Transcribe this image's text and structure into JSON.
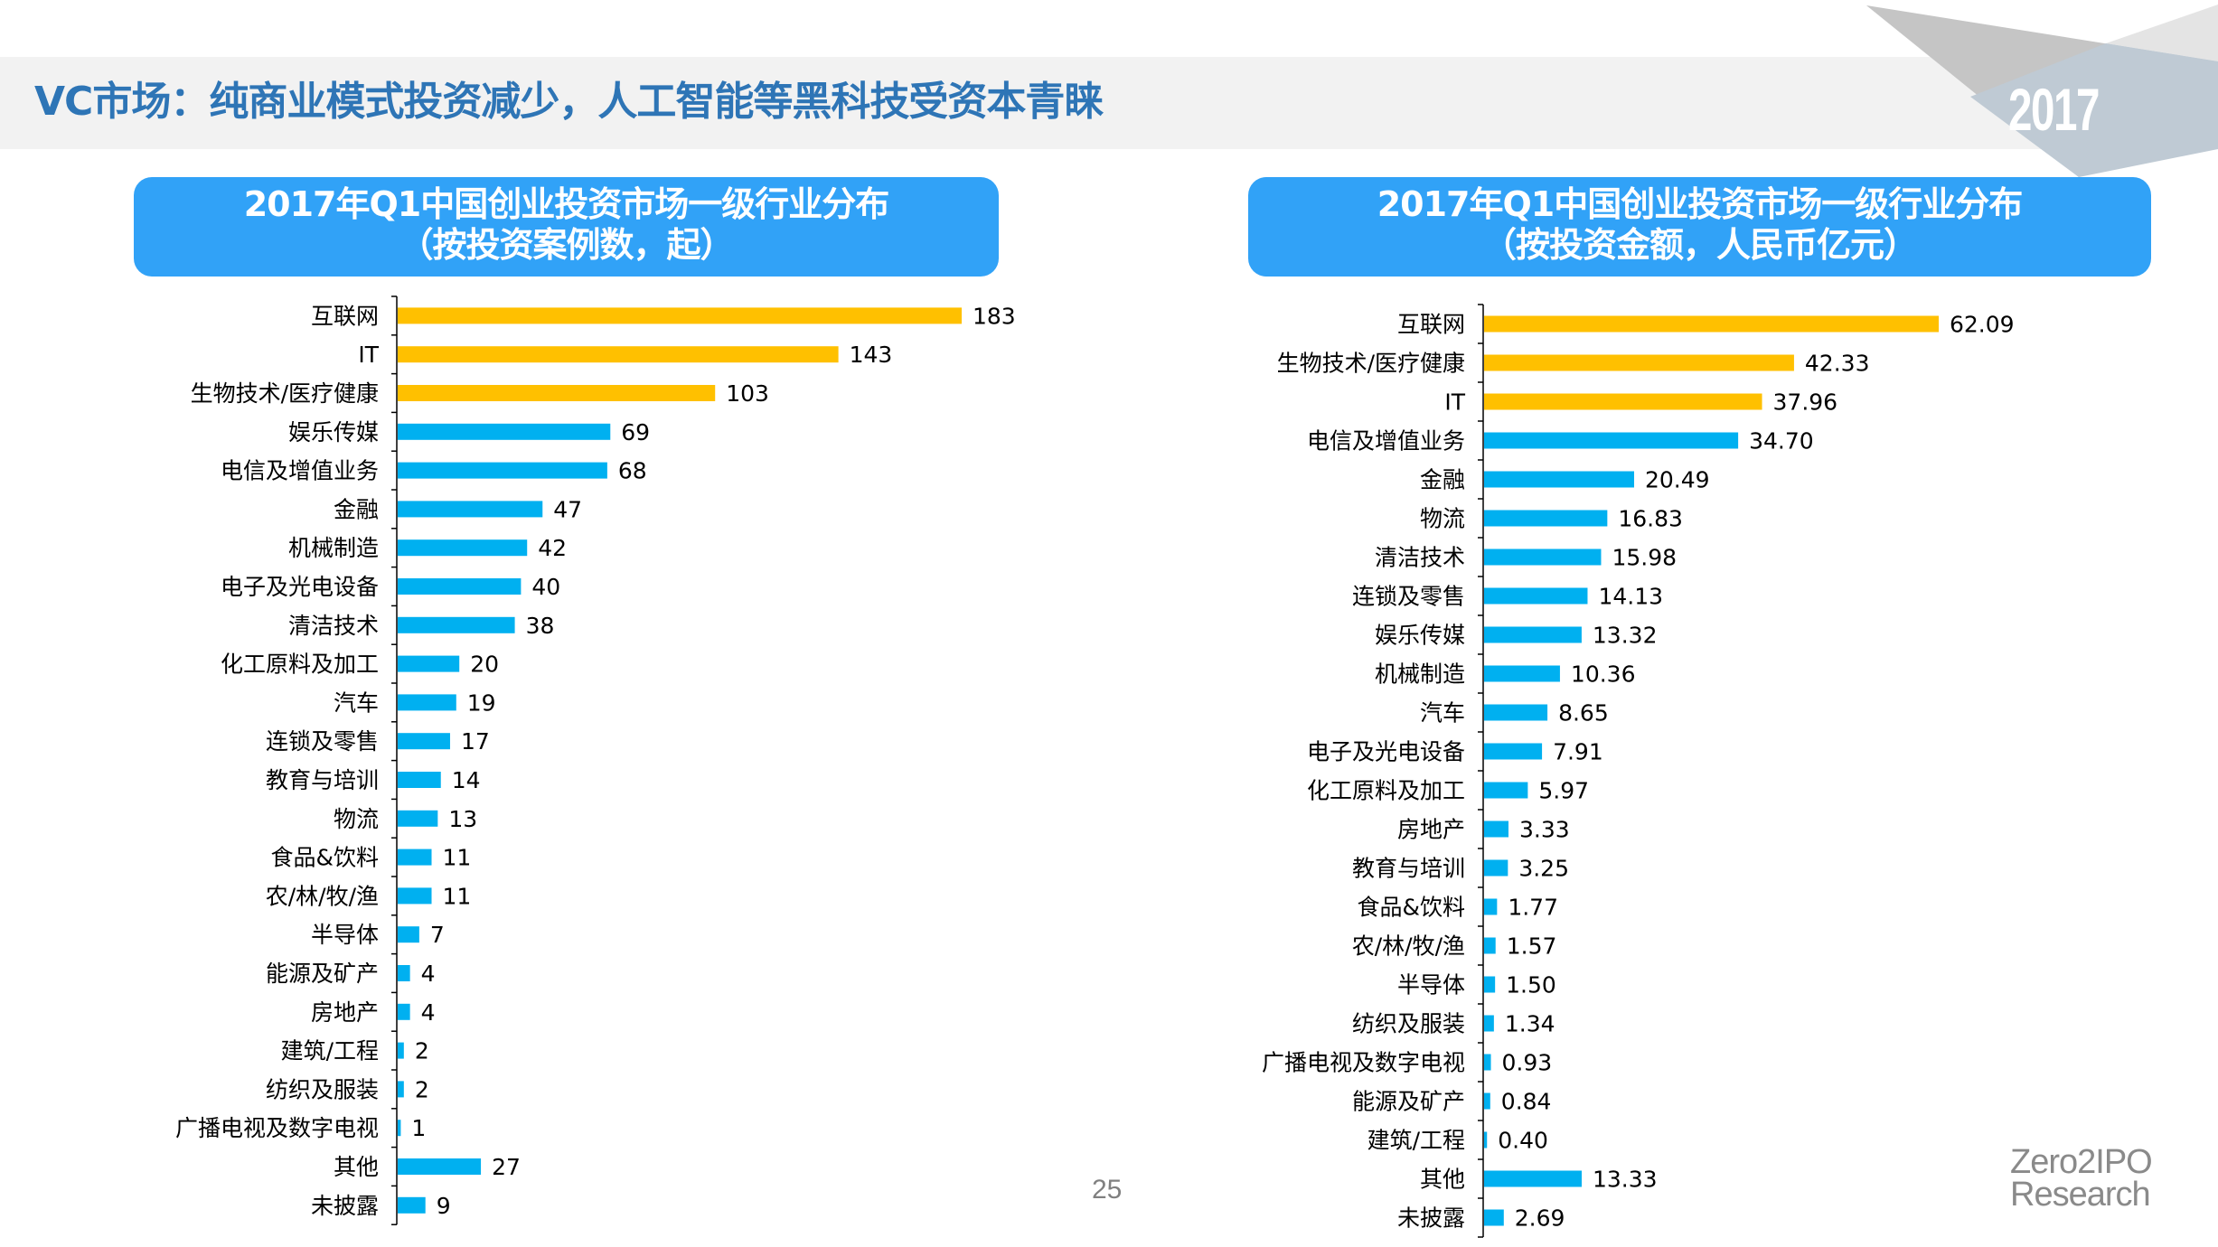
{
  "header": {
    "title": "VC市场：纯商业模式投资减少，人工智能等黑科技受资本青睐",
    "year_badge": "2017"
  },
  "colors": {
    "title": "#2e75b6",
    "box": "#31a2f7",
    "highlight_bar": "#ffc000",
    "normal_bar": "#00b0f0",
    "banner": "#f2f2f2"
  },
  "footer": {
    "page_number": "25",
    "logo_line1": "Zero2IPO",
    "logo_line2": "Research"
  },
  "chart_data": [
    {
      "type": "bar",
      "orientation": "horizontal",
      "title": "2017年Q1中国创业投资市场一级行业分布",
      "subtitle": "（按投资案例数，起）",
      "xlabel": "",
      "ylabel": "",
      "grid": false,
      "legend": "none",
      "xlim": [
        0,
        183
      ],
      "highlight_top_n": 3,
      "categories": [
        "互联网",
        "IT",
        "生物技术/医疗健康",
        "娱乐传媒",
        "电信及增值业务",
        "金融",
        "机械制造",
        "电子及光电设备",
        "清洁技术",
        "化工原料及加工",
        "汽车",
        "连锁及零售",
        "教育与培训",
        "物流",
        "食品&饮料",
        "农/林/牧/渔",
        "半导体",
        "能源及矿产",
        "房地产",
        "建筑/工程",
        "纺织及服装",
        "广播电视及数字电视",
        "其他",
        "未披露"
      ],
      "values": [
        183,
        143,
        103,
        69,
        68,
        47,
        42,
        40,
        38,
        20,
        19,
        17,
        14,
        13,
        11,
        11,
        7,
        4,
        4,
        2,
        2,
        1,
        27,
        9
      ],
      "value_labels": [
        "183",
        "143",
        "103",
        "69",
        "68",
        "47",
        "42",
        "40",
        "38",
        "20",
        "19",
        "17",
        "14",
        "13",
        "11",
        "11",
        "7",
        "4",
        "4",
        "2",
        "2",
        "1",
        "27",
        "9"
      ]
    },
    {
      "type": "bar",
      "orientation": "horizontal",
      "title": "2017年Q1中国创业投资市场一级行业分布",
      "subtitle": "（按投资金额，人民币亿元）",
      "xlabel": "",
      "ylabel": "",
      "grid": false,
      "legend": "none",
      "xlim": [
        0,
        62.09
      ],
      "highlight_top_n": 3,
      "categories": [
        "互联网",
        "生物技术/医疗健康",
        "IT",
        "电信及增值业务",
        "金融",
        "物流",
        "清洁技术",
        "连锁及零售",
        "娱乐传媒",
        "机械制造",
        "汽车",
        "电子及光电设备",
        "化工原料及加工",
        "房地产",
        "教育与培训",
        "食品&饮料",
        "农/林/牧/渔",
        "半导体",
        "纺织及服装",
        "广播电视及数字电视",
        "能源及矿产",
        "建筑/工程",
        "其他",
        "未披露"
      ],
      "values": [
        62.09,
        42.33,
        37.96,
        34.7,
        20.49,
        16.83,
        15.98,
        14.13,
        13.32,
        10.36,
        8.65,
        7.91,
        5.97,
        3.33,
        3.25,
        1.77,
        1.57,
        1.5,
        1.34,
        0.93,
        0.84,
        0.4,
        13.33,
        2.69
      ],
      "value_labels": [
        "62.09",
        "42.33",
        "37.96",
        "34.70",
        "20.49",
        "16.83",
        "15.98",
        "14.13",
        "13.32",
        "10.36",
        "8.65",
        "7.91",
        "5.97",
        "3.33",
        "3.25",
        "1.77",
        "1.57",
        "1.50",
        "1.34",
        "0.93",
        "0.84",
        "0.40",
        "13.33",
        "2.69"
      ]
    }
  ]
}
